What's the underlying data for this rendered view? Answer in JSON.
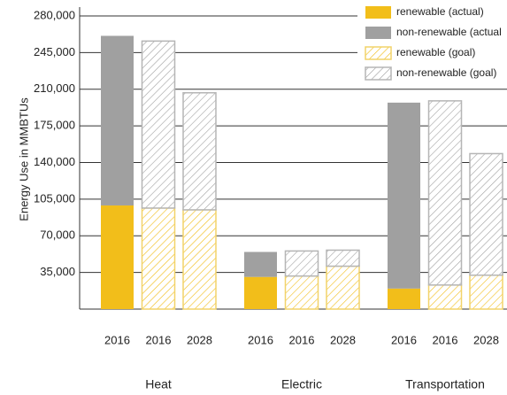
{
  "chart_data": {
    "type": "stacked-bar",
    "y_label": "Energy Use in MMBTUs",
    "categories": [
      "2016",
      "2016",
      "2028",
      "2016",
      "2016",
      "2028",
      "2016",
      "2016",
      "2028"
    ],
    "groups": [
      "Heat",
      "Electric",
      "Transportation"
    ],
    "series": [
      {
        "name": "renewable (actual)",
        "color": "#f2be1a",
        "pattern": "solid",
        "values": [
          99000,
          null,
          null,
          30700,
          null,
          null,
          19600,
          null,
          null
        ]
      },
      {
        "name": "non-renewable (actual",
        "color": "#a0a0a0",
        "pattern": "solid",
        "values": [
          162000,
          null,
          null,
          23900,
          null,
          null,
          177600,
          null,
          null
        ]
      },
      {
        "name": "renewable (goal)",
        "color": "#f2be1a",
        "pattern": "hatch",
        "values": [
          null,
          96500,
          94800,
          null,
          31600,
          41000,
          null,
          23000,
          32400
        ]
      },
      {
        "name": "non-renewable (goal)",
        "color": "#a0a0a0",
        "pattern": "hatch",
        "values": [
          null,
          159500,
          111800,
          null,
          23900,
          15300,
          null,
          175900,
          116100
        ]
      }
    ],
    "ylim": [
      0,
      280000
    ],
    "yticks": [
      {
        "value": 35000,
        "label": "35,000"
      },
      {
        "value": 70000,
        "label": "70,000"
      },
      {
        "value": 105000,
        "label": "105,000"
      },
      {
        "value": 140000,
        "label": "140,000"
      },
      {
        "value": 175000,
        "label": "175,000"
      },
      {
        "value": 210000,
        "label": "210,000"
      },
      {
        "value": 245000,
        "label": "245,000"
      },
      {
        "value": 280000,
        "label": "280,000"
      }
    ],
    "grid": true
  }
}
